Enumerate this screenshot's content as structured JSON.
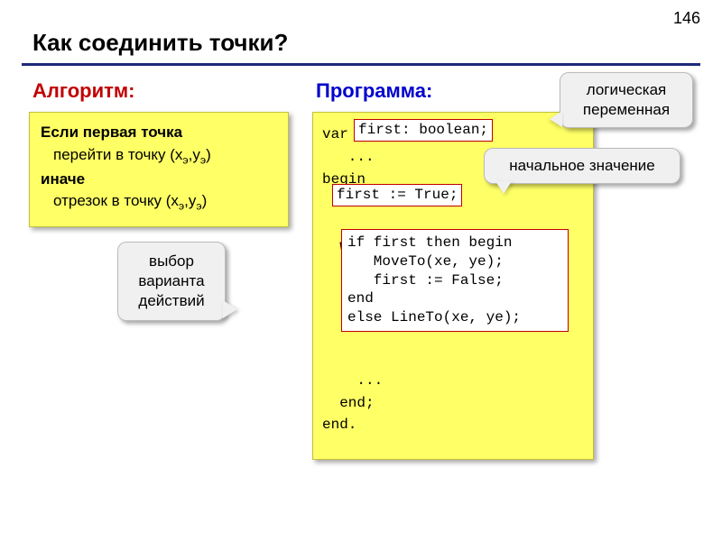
{
  "page_number": "146",
  "title": "Как соединить точки?",
  "headings": {
    "left": "Алгоритм:",
    "right": "Программа:"
  },
  "algo": {
    "l1": "Если первая точка",
    "l2_pre": "перейти в точку (x",
    "l2_sub": "э",
    "l2_mid": ",y",
    "l2_sub2": "э",
    "l2_post": ")",
    "l3": "иначе",
    "l4_pre": "отрезок в точку (x",
    "l4_sub": "э",
    "l4_mid": ",y",
    "l4_sub2": "э",
    "l4_post": ")"
  },
  "callouts": {
    "choice_l1": "выбор",
    "choice_l2": "варианта",
    "choice_l3": "действий",
    "logical_l1": "логическая",
    "logical_l2": "переменная",
    "initial": "начальное значение"
  },
  "code": {
    "var_kw": "var",
    "decl": "first: boolean;",
    "ell": "   ...",
    "begin": "begin",
    "ell2": "  ...",
    "assign": "first := True;",
    "while": "  while x <= xmax do begin",
    "ell3": "    ...",
    "if_l1": "if first then begin",
    "if_l2": "   MoveTo(xe, ye);",
    "if_l3": "   first := False;",
    "if_l4": "end",
    "if_l5": "else LineTo(xe, ye);",
    "ell4": "    ...",
    "end1": "  end;",
    "end2": "end."
  },
  "colors": {
    "accent_red": "#c00000",
    "accent_blue": "#0000cc",
    "box_bg": "#ffff66",
    "callout_bg": "#f0f0f0",
    "underline": "#1e2a7a"
  }
}
